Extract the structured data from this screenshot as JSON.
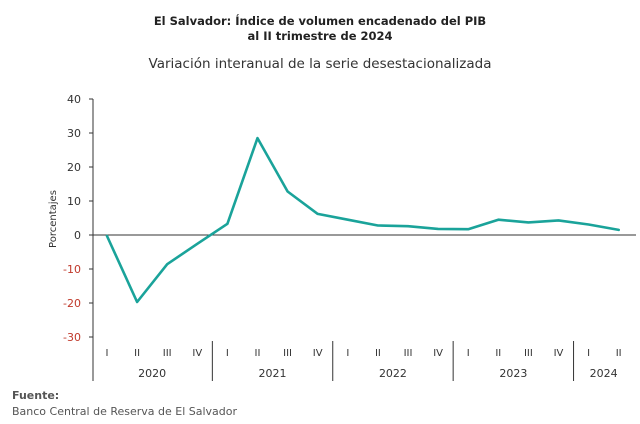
{
  "header": {
    "title_line1": "El Salvador: Índice de volumen encadenado del PIB",
    "title_line2": "al II trimestre de 2024",
    "subtitle": "Variación interanual de la serie desestacionalizada"
  },
  "source": {
    "label": "Fuente:",
    "text": "Banco Central de Reserva de El Salvador"
  },
  "colors": {
    "line": "#1aa39a",
    "axis": "#333333",
    "negative_tick": "#c0392b"
  },
  "chart_data": {
    "type": "line",
    "ylabel": "Porcentajes",
    "ylim": [
      -30,
      40
    ],
    "yticks": [
      "40",
      "30",
      "20",
      "10",
      "0",
      "-10",
      "-20",
      "-30"
    ],
    "quarters": [
      "I",
      "II",
      "III",
      "IV",
      "I",
      "II",
      "III",
      "IV",
      "I",
      "II",
      "III",
      "IV",
      "I",
      "II",
      "III",
      "IV",
      "I",
      "II"
    ],
    "years": [
      {
        "label": "2020",
        "quarters": 4
      },
      {
        "label": "2021",
        "quarters": 4
      },
      {
        "label": "2022",
        "quarters": 4
      },
      {
        "label": "2023",
        "quarters": 4
      },
      {
        "label": "2024",
        "quarters": 2
      }
    ],
    "series": [
      {
        "values": [
          -0.3,
          -19.7,
          -8.6,
          -2.6,
          3.3,
          28.5,
          12.8,
          6.2,
          4.5,
          2.8,
          2.6,
          1.8,
          1.7,
          4.5,
          3.7,
          4.3,
          3.1,
          1.5
        ]
      }
    ]
  }
}
